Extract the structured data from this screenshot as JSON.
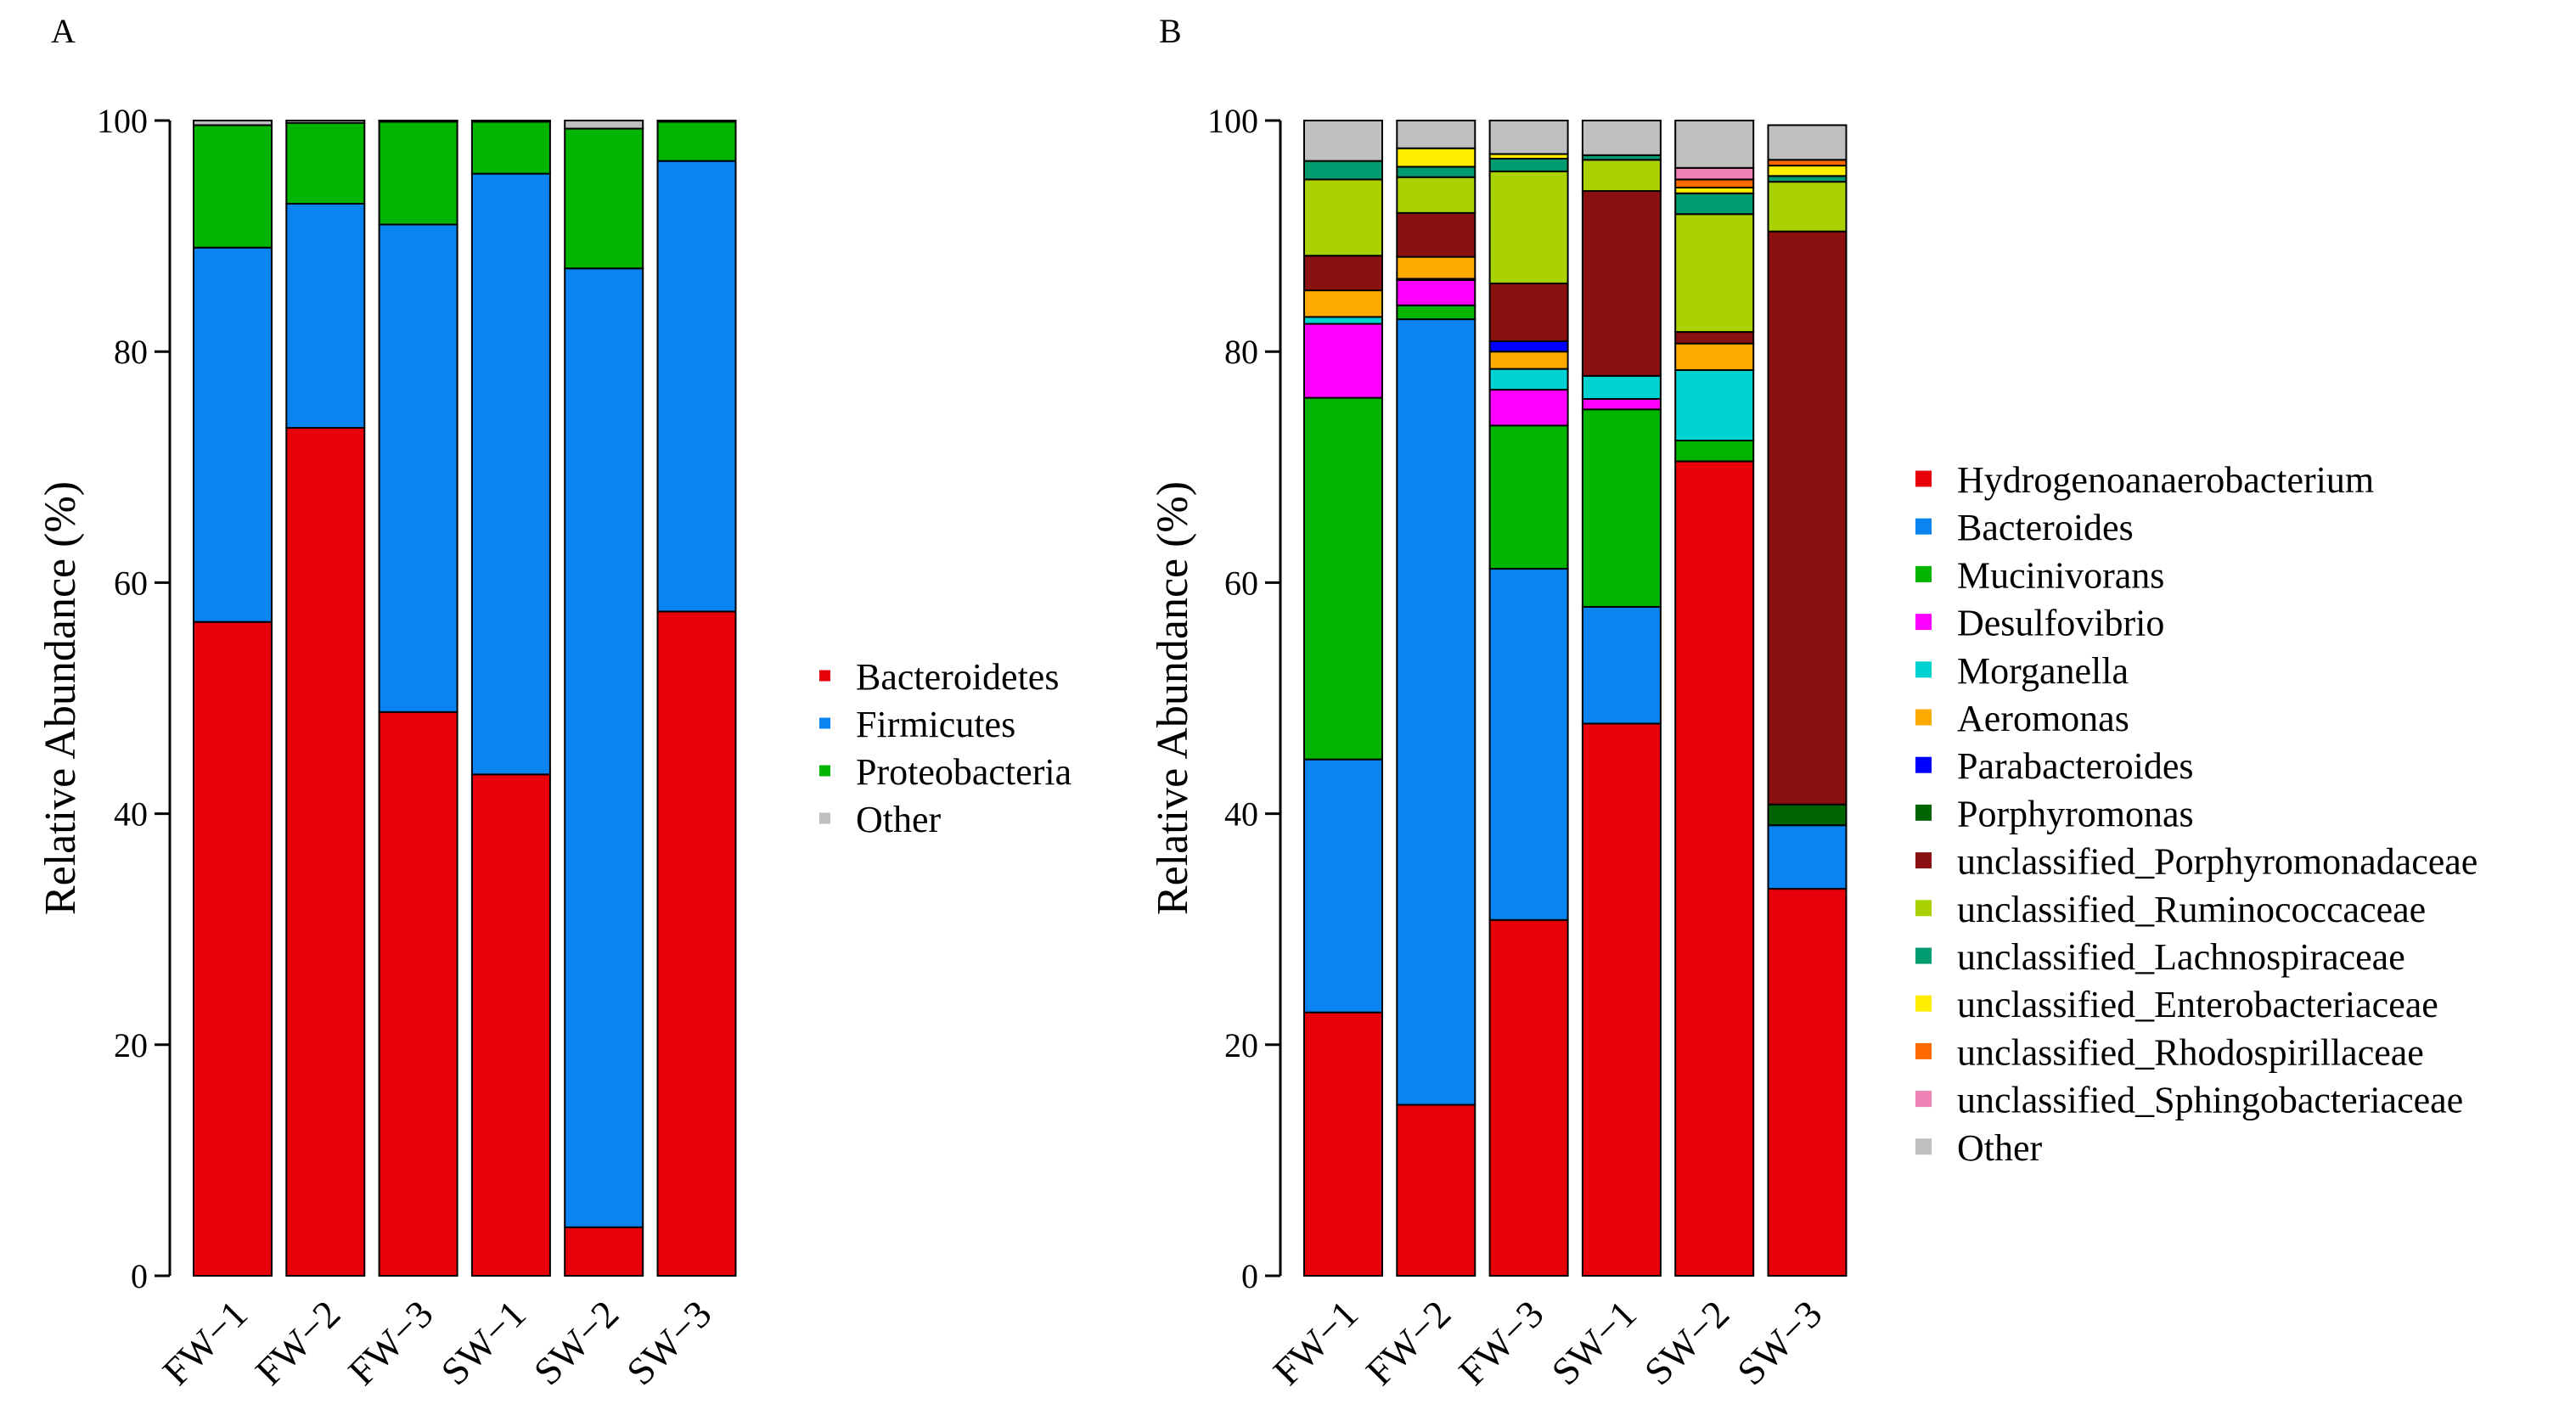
{
  "chart_data": [
    {
      "panel": "A",
      "type": "bar",
      "stacked": true,
      "ylabel": "Relative Abundance (%)",
      "ylim": [
        0,
        100
      ],
      "yticks": [
        0,
        20,
        40,
        60,
        80,
        100
      ],
      "categories": [
        "FW−1",
        "FW−2",
        "FW−3",
        "SW−1",
        "SW−2",
        "SW−3"
      ],
      "legend_position": "right",
      "series": [
        {
          "name": "Bacteroidetes",
          "color": "#e8000b",
          "values": [
            56.6,
            73.4,
            48.8,
            43.4,
            4.2,
            57.5
          ]
        },
        {
          "name": "Firmicutes",
          "color": "#0a84f0",
          "values": [
            32.4,
            19.4,
            42.2,
            52.0,
            83.0,
            39.0
          ]
        },
        {
          "name": "Proteobacteria",
          "color": "#00b400",
          "values": [
            10.6,
            7.0,
            8.9,
            4.5,
            12.1,
            3.4
          ]
        },
        {
          "name": "Other",
          "color": "#bfbfbf",
          "values": [
            0.4,
            0.2,
            0.1,
            0.1,
            0.7,
            0.1
          ]
        }
      ]
    },
    {
      "panel": "B",
      "type": "bar",
      "stacked": true,
      "ylabel": "Relative Abundance (%)",
      "ylim": [
        0,
        100
      ],
      "yticks": [
        0,
        20,
        40,
        60,
        80,
        100
      ],
      "categories": [
        "FW−1",
        "FW−2",
        "FW−3",
        "SW−1",
        "SW−2",
        "SW−3"
      ],
      "legend_position": "right",
      "series": [
        {
          "name": "Hydrogenoanaerobacterium",
          "color": "#e8000b",
          "values": [
            22.8,
            14.8,
            30.8,
            47.8,
            70.5,
            33.5
          ]
        },
        {
          "name": "Bacteroides",
          "color": "#0a84f0",
          "values": [
            21.9,
            68.0,
            30.4,
            10.1,
            0.0,
            5.5
          ]
        },
        {
          "name": "Mucinivorans",
          "color": "#00b400",
          "values": [
            31.3,
            1.2,
            12.4,
            17.1,
            1.8,
            0.0
          ]
        },
        {
          "name": "Desulfovibrio",
          "color": "#ff00ff",
          "values": [
            6.4,
            2.2,
            3.1,
            0.9,
            0.0,
            0.0
          ]
        },
        {
          "name": "Morganella",
          "color": "#00d2d2",
          "values": [
            0.6,
            0.1,
            1.8,
            2.0,
            6.1,
            0.0
          ]
        },
        {
          "name": "Aeromonas",
          "color": "#ffaa00",
          "values": [
            2.3,
            1.9,
            1.5,
            0.0,
            2.3,
            0.0
          ]
        },
        {
          "name": "Parabacteroides",
          "color": "#0000ff",
          "values": [
            0.0,
            0.0,
            0.9,
            0.0,
            0.0,
            0.0
          ]
        },
        {
          "name": "Porphyromonas",
          "color": "#006400",
          "values": [
            0.0,
            0.0,
            0.0,
            0.0,
            0.0,
            1.8
          ]
        },
        {
          "name": "unclassified_Porphyromonadaceae",
          "color": "#8b1111",
          "values": [
            3.0,
            3.8,
            5.0,
            16.0,
            1.0,
            49.6
          ]
        },
        {
          "name": "unclassified_Ruminococcaceae",
          "color": "#aad200",
          "values": [
            6.6,
            3.1,
            9.7,
            2.7,
            10.2,
            4.3
          ]
        },
        {
          "name": "unclassified_Lachnospiraceae",
          "color": "#009b6e",
          "values": [
            1.6,
            0.9,
            1.1,
            0.4,
            1.8,
            0.5
          ]
        },
        {
          "name": "unclassified_Enterobacteriaceae",
          "color": "#ffee00",
          "values": [
            0.0,
            1.6,
            0.4,
            0.0,
            0.5,
            0.9
          ]
        },
        {
          "name": "unclassified_Rhodospirillaceae",
          "color": "#ff6a00",
          "values": [
            0.0,
            0.0,
            0.0,
            0.0,
            0.7,
            0.5
          ]
        },
        {
          "name": "unclassified_Sphingobacteriaceae",
          "color": "#ee82b4",
          "values": [
            0.0,
            0.0,
            0.0,
            0.0,
            1.0,
            0.0
          ]
        },
        {
          "name": "Other",
          "color": "#bfbfbf",
          "values": [
            3.5,
            2.4,
            2.9,
            3.0,
            4.1,
            3.0
          ]
        }
      ]
    }
  ]
}
